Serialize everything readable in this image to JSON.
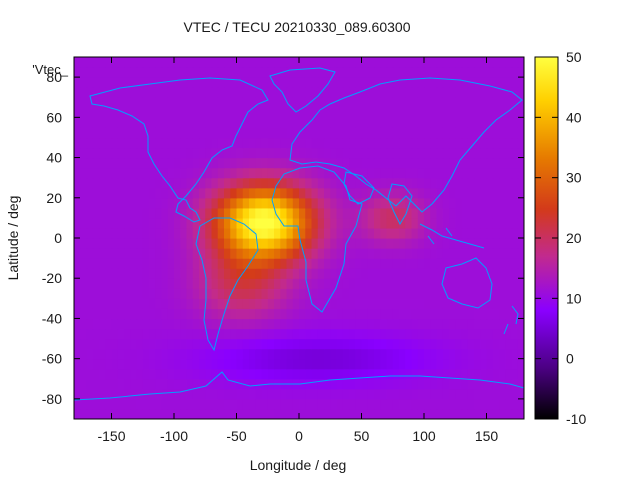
{
  "chart_data": {
    "type": "heatmap",
    "title": "VTEC / TECU 20210330_089.60300",
    "xlabel": "Longitude / deg",
    "ylabel": "Latitude / deg",
    "legend_key": "'Vtec_",
    "xlim": [
      -180,
      180
    ],
    "ylim": [
      -90,
      90
    ],
    "x_ticks": [
      -150,
      -100,
      -50,
      0,
      50,
      100,
      150
    ],
    "y_ticks": [
      -80,
      -60,
      -40,
      -20,
      0,
      20,
      40,
      60,
      80
    ],
    "colorbar": {
      "range": [
        -10,
        50
      ],
      "ticks": [
        -10,
        0,
        10,
        20,
        30,
        40,
        50
      ],
      "palette": [
        "#000000",
        "#4b0082",
        "#8a00ff",
        "#c22a8e",
        "#d33a1a",
        "#e67a00",
        "#ffd000",
        "#ffff40"
      ]
    },
    "grid": false,
    "coastline_color": "#00a0ff",
    "field": {
      "description_units": "TECU",
      "background": 11,
      "components": [
        {
          "lon": -28,
          "lat": 8,
          "amp": 40,
          "slon": 38,
          "slat": 18
        },
        {
          "lon": -45,
          "lat": -22,
          "amp": 10,
          "slon": 35,
          "slat": 18
        },
        {
          "lon": 75,
          "lat": 10,
          "amp": 9,
          "slon": 25,
          "slat": 12
        },
        {
          "lon": 15,
          "lat": -60,
          "amp": -6,
          "slon": 90,
          "slat": 12
        }
      ]
    }
  }
}
